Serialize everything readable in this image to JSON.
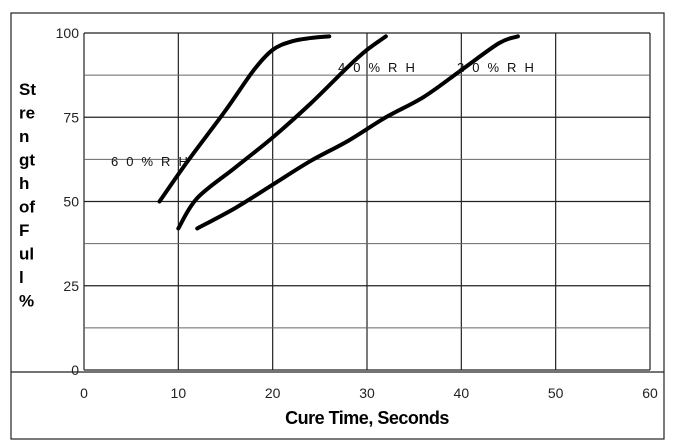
{
  "chart_data": {
    "type": "line",
    "title": "",
    "xlabel": "Cure Time, Seconds",
    "ylabel_lines": [
      "St",
      "re",
      "n",
      "gt",
      "h",
      "of",
      "F",
      "ul",
      "l",
      "%"
    ],
    "xlim": [
      0,
      60
    ],
    "ylim": [
      0,
      100
    ],
    "x_ticks": [
      "0",
      "10",
      "20",
      "30",
      "40",
      "50",
      "60"
    ],
    "y_ticks": [
      "0",
      "25",
      "50",
      "75",
      "100"
    ],
    "grid": true,
    "legend": "none",
    "series": [
      {
        "name": "6 0 % R H",
        "points": [
          [
            8,
            50
          ],
          [
            11,
            62
          ],
          [
            15,
            77
          ],
          [
            18,
            89
          ],
          [
            20,
            95
          ],
          [
            22,
            97.5
          ],
          [
            24,
            98.5
          ],
          [
            26,
            99
          ]
        ]
      },
      {
        "name": "4 0 % R H",
        "points": [
          [
            10,
            42
          ],
          [
            12,
            51
          ],
          [
            16,
            60
          ],
          [
            20,
            69
          ],
          [
            24,
            79
          ],
          [
            28,
            90
          ],
          [
            30,
            95
          ],
          [
            32,
            99
          ]
        ]
      },
      {
        "name": "2 0 % R H",
        "points": [
          [
            12,
            42
          ],
          [
            16,
            48
          ],
          [
            20,
            55
          ],
          [
            24,
            62
          ],
          [
            28,
            68
          ],
          [
            32,
            75
          ],
          [
            36,
            81
          ],
          [
            40,
            89
          ],
          [
            44,
            97
          ],
          [
            46,
            99
          ]
        ]
      }
    ]
  }
}
